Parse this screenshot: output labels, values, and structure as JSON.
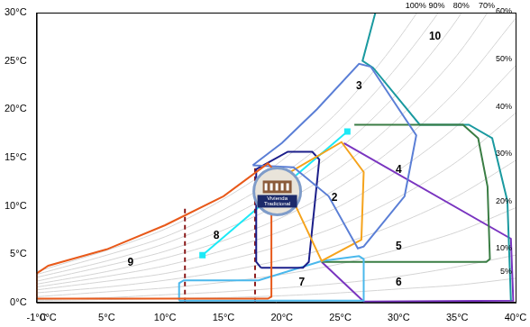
{
  "chart_data": {
    "type": "scatter",
    "xlim": [
      -1,
      40
    ],
    "xticks": [
      {
        "value": -1,
        "label": "-1°C"
      },
      {
        "value": 0,
        "label": "0°C"
      },
      {
        "value": 5,
        "label": "5°C"
      },
      {
        "value": 10,
        "label": "10°C"
      },
      {
        "value": 15,
        "label": "15°C"
      },
      {
        "value": 20,
        "label": "20°C"
      },
      {
        "value": 25,
        "label": "25°C"
      },
      {
        "value": 30,
        "label": "30°C"
      },
      {
        "value": 35,
        "label": "35°C"
      },
      {
        "value": 40,
        "label": "40°C"
      }
    ],
    "ylim": [
      0,
      30
    ],
    "yticks": [
      {
        "value": 0,
        "label": "0°C"
      },
      {
        "value": 5,
        "label": "5°C"
      },
      {
        "value": 10,
        "label": "10°C"
      },
      {
        "value": 15,
        "label": "15°C"
      },
      {
        "value": 20,
        "label": "20°C"
      },
      {
        "value": 25,
        "label": "25°C"
      },
      {
        "value": 30,
        "label": "30°C"
      }
    ],
    "grid": false,
    "humidity_curves": [
      {
        "name": "100%",
        "color": "#d4d4d4",
        "x": [
          -1,
          5,
          10,
          15,
          20,
          25,
          30,
          35,
          40
        ],
        "y": [
          3.2,
          5.4,
          7.6,
          10.7,
          14.7,
          20.0,
          27.3,
          36.6,
          49.0
        ]
      },
      {
        "name": "90%",
        "color": "#d4d4d4",
        "x": [
          -1,
          5,
          10,
          15,
          20,
          25,
          30,
          35,
          40
        ],
        "y": [
          2.9,
          4.9,
          6.8,
          9.6,
          13.2,
          18.0,
          24.6,
          32.9,
          44.1
        ]
      },
      {
        "name": "80%",
        "color": "#d4d4d4",
        "x": [
          -1,
          5,
          10,
          15,
          20,
          25,
          30,
          35,
          40
        ],
        "y": [
          2.6,
          4.3,
          6.1,
          8.6,
          11.8,
          16.0,
          21.8,
          29.3,
          39.2
        ]
      },
      {
        "name": "70%",
        "color": "#d4d4d4",
        "x": [
          -1,
          5,
          10,
          15,
          20,
          25,
          30,
          35,
          40
        ],
        "y": [
          2.2,
          3.8,
          5.3,
          7.5,
          10.3,
          14.0,
          19.1,
          25.6,
          34.3
        ]
      },
      {
        "name": "60%",
        "color": "#d4d4d4",
        "x": [
          -1,
          5,
          10,
          15,
          20,
          25,
          30,
          35,
          40
        ],
        "y": [
          1.9,
          3.2,
          4.6,
          6.4,
          8.8,
          12.0,
          16.4,
          22.0,
          29.4
        ]
      },
      {
        "name": "50%",
        "color": "#d4d4d4",
        "x": [
          -1,
          5,
          10,
          15,
          20,
          25,
          30,
          35,
          40
        ],
        "y": [
          1.6,
          2.7,
          3.8,
          5.4,
          7.4,
          10.0,
          13.7,
          18.3,
          24.5
        ]
      },
      {
        "name": "40%",
        "color": "#d4d4d4",
        "x": [
          -1,
          5,
          10,
          15,
          20,
          25,
          30,
          35,
          40
        ],
        "y": [
          1.3,
          2.2,
          3.0,
          4.3,
          5.9,
          8.0,
          10.9,
          14.6,
          19.6
        ]
      },
      {
        "name": "30%",
        "color": "#d4d4d4",
        "x": [
          -1,
          5,
          10,
          15,
          20,
          25,
          30,
          35,
          40
        ],
        "y": [
          1.0,
          1.6,
          2.3,
          3.2,
          4.4,
          6.0,
          8.2,
          11.0,
          14.7
        ]
      },
      {
        "name": "20%",
        "color": "#d4d4d4",
        "x": [
          -1,
          5,
          10,
          15,
          20,
          25,
          30,
          35,
          40
        ],
        "y": [
          0.6,
          1.1,
          1.5,
          2.1,
          2.9,
          4.0,
          5.5,
          7.3,
          9.8
        ]
      },
      {
        "name": "10%",
        "color": "#d4d4d4",
        "x": [
          -1,
          5,
          10,
          15,
          20,
          25,
          30,
          35,
          40
        ],
        "y": [
          0.3,
          0.5,
          0.8,
          1.1,
          1.5,
          2.0,
          2.7,
          3.7,
          4.9
        ]
      },
      {
        "name": "5%",
        "color": "#d4d4d4",
        "x": [
          -1,
          5,
          10,
          15,
          20,
          25,
          30,
          35,
          40
        ],
        "y": [
          0.2,
          0.3,
          0.4,
          0.5,
          0.7,
          1.0,
          1.4,
          1.8,
          2.5
        ]
      }
    ],
    "series": [
      {
        "color": "#e85a1b",
        "line_style": "solid",
        "marker": "none",
        "x": [
          -1,
          -1,
          0,
          5,
          10,
          15,
          18.8,
          19.1,
          19.1,
          18.8,
          -1
        ],
        "y": [
          0.4,
          3.0,
          3.8,
          5.5,
          8.0,
          11.0,
          14.4,
          14.0,
          0.6,
          0.4,
          0.4
        ]
      },
      {
        "color": "#5b7fd6",
        "line_style": "solid",
        "marker": "none",
        "x": [
          17.5,
          20,
          23,
          26.6,
          27.6,
          31.5,
          30.5,
          27,
          26.5,
          24,
          21,
          17.5
        ],
        "y": [
          14.2,
          16.5,
          20,
          24.7,
          24.4,
          17.3,
          11,
          5.8,
          5.6,
          11,
          14,
          14.2
        ]
      },
      {
        "color": "#f5a31c",
        "line_style": "solid",
        "marker": "none",
        "x": [
          20,
          25.1,
          27.0,
          26.8,
          23.4,
          20
        ],
        "y": [
          13.0,
          16.6,
          13.5,
          6.5,
          4.3,
          13.0
        ]
      },
      {
        "color": "#1c1f8a",
        "line_style": "solid",
        "marker": "none",
        "x": [
          18.2,
          17.8,
          17.8,
          20.5,
          22.6,
          23.2,
          22.3,
          21.8,
          18.2
        ],
        "y": [
          3.6,
          4.2,
          13.8,
          15.6,
          15.6,
          14.8,
          4.2,
          3.6,
          3.6
        ]
      },
      {
        "color": "#4ab8ec",
        "line_style": "solid",
        "marker": "none",
        "x": [
          11.2,
          11.2,
          11.6,
          18.0,
          23.4,
          26.6,
          27.0,
          27.0,
          11.2
        ],
        "y": [
          0.2,
          2.0,
          2.3,
          2.3,
          4.3,
          4.8,
          4.5,
          0.2,
          0.2
        ]
      },
      {
        "color": "#3a7d44",
        "line_style": "solid",
        "marker": "none",
        "x": [
          26.2,
          35.5,
          36.8,
          37.6,
          37.8,
          37.5,
          23.4
        ],
        "y": [
          18.4,
          18.4,
          17.0,
          12.0,
          4.5,
          4.2,
          4.2
        ]
      },
      {
        "color": "#1b9aa0",
        "line_style": "solid",
        "marker": "none",
        "x": [
          28.0,
          26.9,
          27.8,
          31.8,
          36.0,
          38.0,
          39.3,
          39.6
        ],
        "y": [
          30,
          25.0,
          24.3,
          18.4,
          18.4,
          17.0,
          10.5,
          0.2
        ]
      },
      {
        "color": "#7a35c0",
        "line_style": "solid",
        "marker": "none",
        "x": [
          25.3,
          39.6,
          39.8,
          27.0,
          23.4
        ],
        "y": [
          16.5,
          6.6,
          0.2,
          0.1,
          4.2
        ]
      },
      {
        "color": "#8b1a1a",
        "line_style": "dashed",
        "marker": "none",
        "x": [
          11.7,
          11.7,
          null,
          17.7,
          17.7
        ],
        "y": [
          0,
          9.8,
          null,
          0,
          13.9
        ]
      },
      {
        "color": "#1de9f6",
        "line_style": "solid",
        "marker": "square",
        "x": [
          13.2,
          25.6
        ],
        "y": [
          4.9,
          17.7
        ]
      }
    ],
    "annotations": [
      {
        "text": "9",
        "x": 7.05,
        "y": 4.1
      },
      {
        "text": "8",
        "x": 14.4,
        "y": 6.9
      },
      {
        "text": "7",
        "x": 21.7,
        "y": 2.1
      },
      {
        "text": "2",
        "x": 24.5,
        "y": 10.8
      },
      {
        "text": "3",
        "x": 26.6,
        "y": 22.4
      },
      {
        "text": "4",
        "x": 30.0,
        "y": 13.7
      },
      {
        "text": "5",
        "x": 30.0,
        "y": 5.8
      },
      {
        "text": "6",
        "x": 30.0,
        "y": 2.1
      },
      {
        "text": "10",
        "x": 33.1,
        "y": 27.5
      }
    ],
    "icon": {
      "text": "Vivienda Tradicional",
      "x": 19.6,
      "y": 11.5
    }
  }
}
